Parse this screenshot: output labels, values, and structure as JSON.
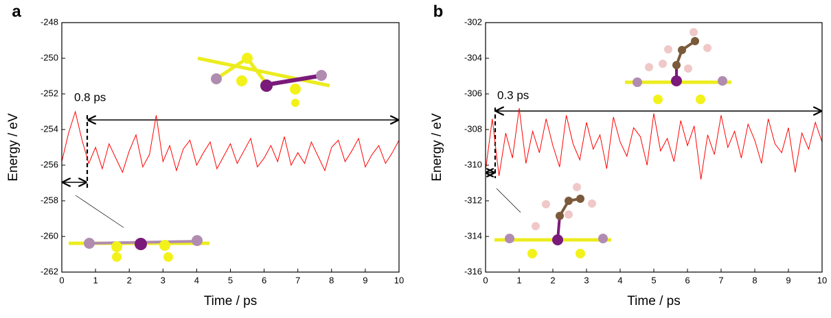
{
  "chart_data": [
    {
      "type": "line",
      "panel_label": "a",
      "annotation": "0.8 ps",
      "xlabel": "Time / ps",
      "ylabel": "Energy / eV",
      "xlim": [
        0,
        10
      ],
      "xticks": [
        0,
        1,
        2,
        3,
        4,
        5,
        6,
        7,
        8,
        9,
        10
      ],
      "ylim": [
        -262,
        -248
      ],
      "yticks": [
        -262,
        -260,
        -258,
        -256,
        -254,
        -252,
        -250,
        -248
      ],
      "series": [
        {
          "color": "#ff0000",
          "x": [
            0,
            0.2,
            0.4,
            0.6,
            0.8,
            1,
            1.2,
            1.4,
            1.6,
            1.8,
            2,
            2.2,
            2.4,
            2.6,
            2.8,
            3,
            3.2,
            3.4,
            3.6,
            3.8,
            4,
            4.2,
            4.4,
            4.6,
            4.8,
            5,
            5.2,
            5.4,
            5.6,
            5.8,
            6,
            6.2,
            6.4,
            6.6,
            6.8,
            7,
            7.2,
            7.4,
            7.6,
            7.8,
            8,
            8.2,
            8.4,
            8.6,
            8.8,
            9,
            9.2,
            9.4,
            9.6,
            9.8,
            10
          ],
          "values": [
            -255.8,
            -254.2,
            -253,
            -254.6,
            -255.9,
            -255,
            -256.2,
            -254.8,
            -255.6,
            -256.4,
            -255.2,
            -254.3,
            -256.1,
            -255.4,
            -253.2,
            -255.8,
            -254.9,
            -256.3,
            -255.1,
            -254.6,
            -256,
            -255.3,
            -254.7,
            -256.2,
            -255.5,
            -254.8,
            -255.9,
            -255.2,
            -254.5,
            -256.1,
            -255.6,
            -254.9,
            -255.8,
            -254.4,
            -256,
            -255.3,
            -255.9,
            -254.7,
            -255.5,
            -256.3,
            -255,
            -254.6,
            -255.8,
            -255.2,
            -254.5,
            -256.1,
            -255.4,
            -254.9,
            -255.9,
            -255.3,
            -254.6
          ]
        }
      ]
    },
    {
      "type": "line",
      "panel_label": "b",
      "annotation": "0.3 ps",
      "xlabel": "Time / ps",
      "ylabel": "Energy / eV",
      "xlim": [
        0,
        10
      ],
      "xticks": [
        0,
        1,
        2,
        3,
        4,
        5,
        6,
        7,
        8,
        9,
        10
      ],
      "ylim": [
        -316,
        -302
      ],
      "yticks": [
        -316,
        -314,
        -312,
        -310,
        -308,
        -306,
        -304,
        -302
      ],
      "series": [
        {
          "color": "#ff0000",
          "x": [
            0,
            0.2,
            0.4,
            0.6,
            0.8,
            1,
            1.2,
            1.4,
            1.6,
            1.8,
            2,
            2.2,
            2.4,
            2.6,
            2.8,
            3,
            3.2,
            3.4,
            3.6,
            3.8,
            4,
            4.2,
            4.4,
            4.6,
            4.8,
            5,
            5.2,
            5.4,
            5.6,
            5.8,
            6,
            6.2,
            6.4,
            6.6,
            6.8,
            7,
            7.2,
            7.4,
            7.6,
            7.8,
            8,
            8.2,
            8.4,
            8.6,
            8.8,
            9,
            9.2,
            9.4,
            9.6,
            9.8,
            10
          ],
          "values": [
            -310.3,
            -307.4,
            -310.6,
            -308.2,
            -309.6,
            -306.8,
            -309.9,
            -308.1,
            -309.3,
            -307.4,
            -308.9,
            -310.1,
            -307.2,
            -308.8,
            -309.7,
            -307.6,
            -309.1,
            -308.3,
            -310.2,
            -307.3,
            -308.7,
            -309.5,
            -307.9,
            -308.4,
            -310,
            -307.1,
            -309.2,
            -308.5,
            -309.8,
            -307.5,
            -308.9,
            -307.8,
            -310.8,
            -308.3,
            -309.4,
            -307.2,
            -309,
            -308.1,
            -309.6,
            -307.7,
            -308.6,
            -309.9,
            -307.4,
            -308.8,
            -309.3,
            -307.9,
            -310.4,
            -308.2,
            -309.1,
            -307.6,
            -308.7
          ]
        }
      ]
    }
  ]
}
